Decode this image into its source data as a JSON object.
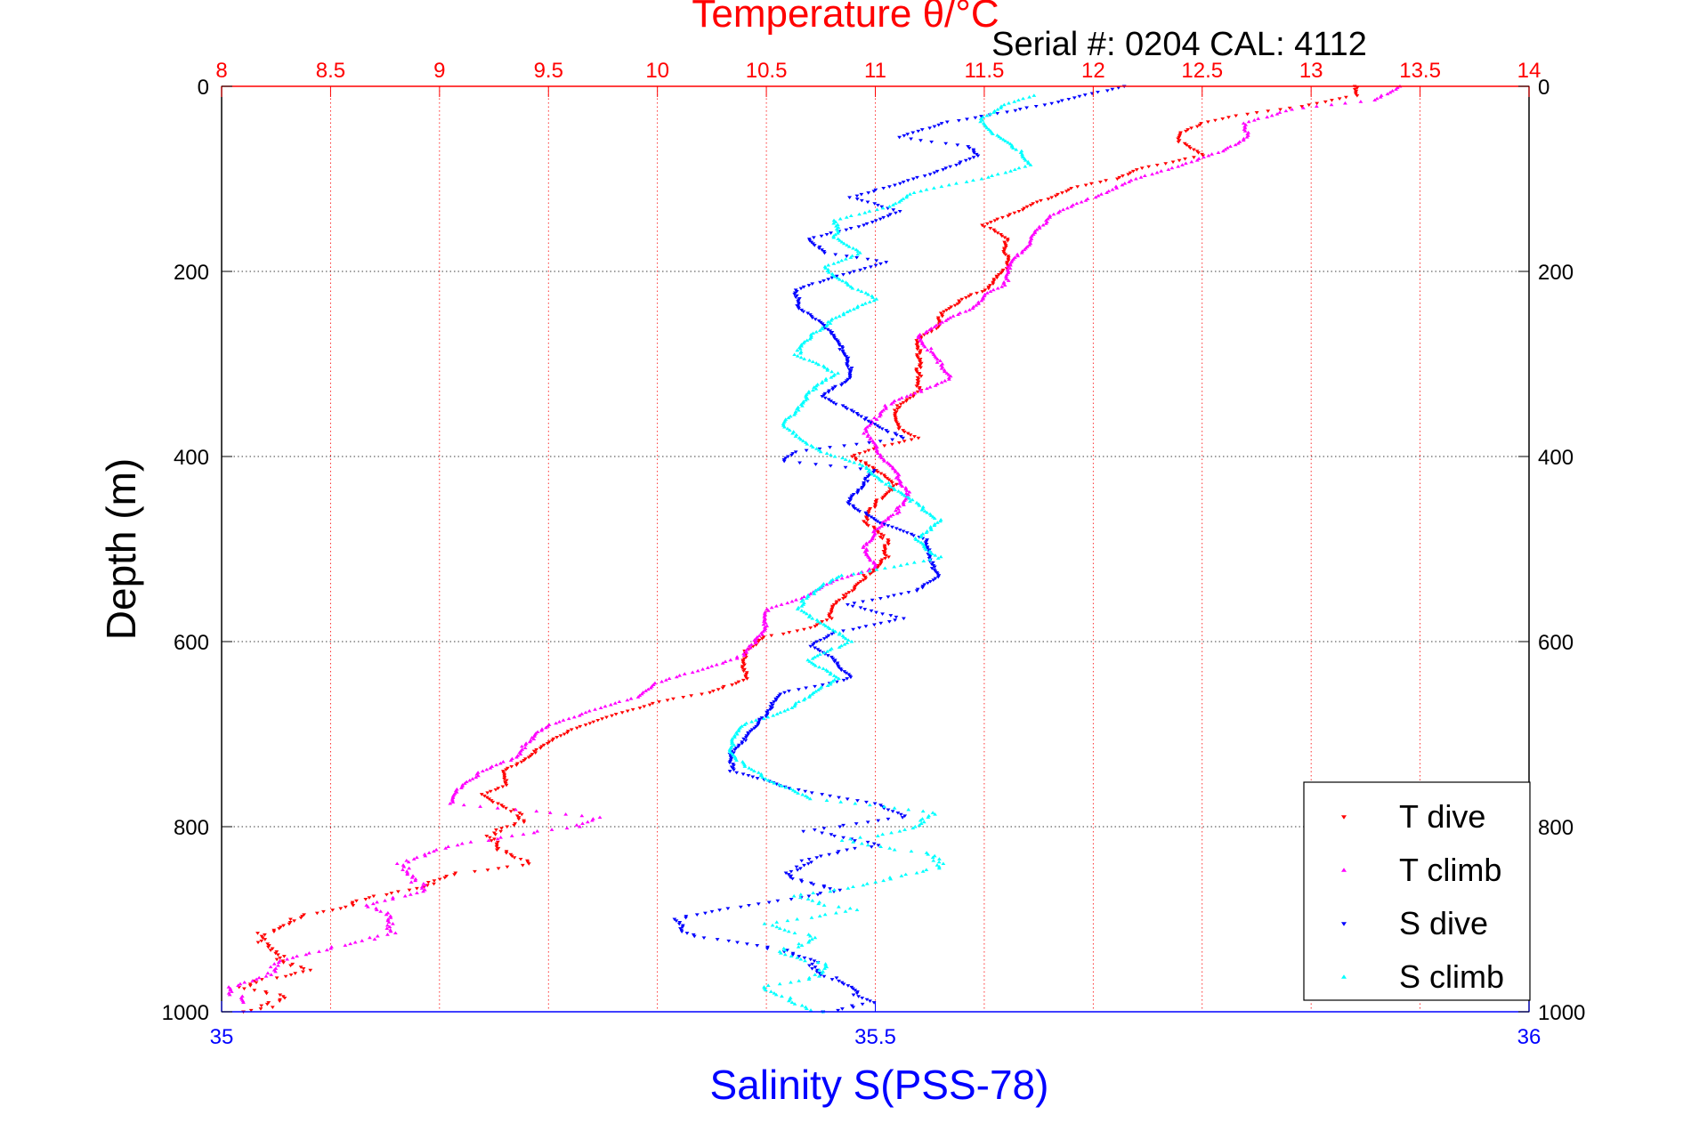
{
  "chart_data": {
    "type": "scatter",
    "title": "Temperature θ/°C",
    "subtitle": "Serial #: 0204  CAL: 4112",
    "top_axis": {
      "label": "Temperature θ/°C",
      "range": [
        8,
        14
      ],
      "ticks": [
        8,
        8.5,
        9,
        9.5,
        10,
        10.5,
        11,
        11.5,
        12,
        12.5,
        13,
        13.5,
        14
      ],
      "tick_labels": [
        "8",
        "8.5",
        "9",
        "9.5",
        "10",
        "10.5",
        "11",
        "11.5",
        "12",
        "12.5",
        "13",
        "13.5",
        "14"
      ],
      "color": "#ff0000"
    },
    "bottom_axis": {
      "label": "Salinity S(PSS-78)",
      "range": [
        35,
        36
      ],
      "ticks": [
        35,
        35.5,
        36
      ],
      "tick_labels": [
        "35",
        "35.5",
        "36"
      ],
      "color": "#0000ff"
    },
    "y_axis": {
      "label": "Depth (m)",
      "range": [
        1000,
        0
      ],
      "ticks": [
        0,
        200,
        400,
        600,
        800,
        1000
      ],
      "tick_labels": [
        "0",
        "200",
        "400",
        "600",
        "800",
        "1000"
      ]
    },
    "grid": true,
    "legend_position": "bottom-right",
    "series": [
      {
        "name": "T dive",
        "axis": "temperature",
        "marker": "triangle-down",
        "color": "#ff0000",
        "points": [
          [
            13.2,
            0
          ],
          [
            13.2,
            10
          ],
          [
            13.0,
            20
          ],
          [
            12.7,
            30
          ],
          [
            12.5,
            40
          ],
          [
            12.4,
            50
          ],
          [
            12.4,
            60
          ],
          [
            12.5,
            75
          ],
          [
            12.2,
            90
          ],
          [
            12.1,
            100
          ],
          [
            11.9,
            110
          ],
          [
            11.8,
            120
          ],
          [
            11.7,
            130
          ],
          [
            11.6,
            140
          ],
          [
            11.5,
            150
          ],
          [
            11.6,
            165
          ],
          [
            11.6,
            180
          ],
          [
            11.6,
            195
          ],
          [
            11.55,
            210
          ],
          [
            11.5,
            220
          ],
          [
            11.4,
            230
          ],
          [
            11.3,
            245
          ],
          [
            11.3,
            260
          ],
          [
            11.2,
            270
          ],
          [
            11.2,
            290
          ],
          [
            11.2,
            310
          ],
          [
            11.2,
            330
          ],
          [
            11.1,
            345
          ],
          [
            11.1,
            360
          ],
          [
            11.1,
            370
          ],
          [
            11.2,
            380
          ],
          [
            11.0,
            390
          ],
          [
            10.9,
            400
          ],
          [
            11.0,
            415
          ],
          [
            11.1,
            430
          ],
          [
            11.0,
            450
          ],
          [
            10.95,
            470
          ],
          [
            11.05,
            490
          ],
          [
            11.05,
            510
          ],
          [
            10.95,
            530
          ],
          [
            10.9,
            545
          ],
          [
            10.8,
            560
          ],
          [
            10.8,
            575
          ],
          [
            10.7,
            585
          ],
          [
            10.5,
            595
          ],
          [
            10.4,
            610
          ],
          [
            10.4,
            625
          ],
          [
            10.4,
            640
          ],
          [
            10.25,
            655
          ],
          [
            10.0,
            665
          ],
          [
            9.8,
            680
          ],
          [
            9.6,
            695
          ],
          [
            9.5,
            710
          ],
          [
            9.4,
            725
          ],
          [
            9.3,
            740
          ],
          [
            9.3,
            755
          ],
          [
            9.2,
            765
          ],
          [
            9.3,
            780
          ],
          [
            9.4,
            795
          ],
          [
            9.2,
            810
          ],
          [
            9.3,
            825
          ],
          [
            9.4,
            840
          ],
          [
            9.1,
            850
          ],
          [
            8.9,
            865
          ],
          [
            8.7,
            875
          ],
          [
            8.6,
            885
          ],
          [
            8.4,
            895
          ],
          [
            8.3,
            905
          ],
          [
            8.2,
            915
          ],
          [
            8.2,
            930
          ],
          [
            8.3,
            945
          ],
          [
            8.4,
            955
          ],
          [
            8.2,
            965
          ],
          [
            8.1,
            975
          ],
          [
            8.3,
            985
          ],
          [
            8.2,
            995
          ],
          [
            8.1,
            1000
          ]
        ]
      },
      {
        "name": "T climb",
        "axis": "temperature",
        "marker": "triangle-up",
        "color": "#ff00ff",
        "points": [
          [
            13.4,
            0
          ],
          [
            13.3,
            15
          ],
          [
            12.9,
            25
          ],
          [
            12.7,
            40
          ],
          [
            12.7,
            55
          ],
          [
            12.6,
            70
          ],
          [
            12.4,
            85
          ],
          [
            12.2,
            100
          ],
          [
            12.1,
            110
          ],
          [
            11.95,
            125
          ],
          [
            11.8,
            140
          ],
          [
            11.75,
            155
          ],
          [
            11.7,
            170
          ],
          [
            11.65,
            185
          ],
          [
            11.6,
            200
          ],
          [
            11.6,
            215
          ],
          [
            11.5,
            225
          ],
          [
            11.45,
            240
          ],
          [
            11.3,
            255
          ],
          [
            11.2,
            270
          ],
          [
            11.25,
            285
          ],
          [
            11.3,
            300
          ],
          [
            11.35,
            315
          ],
          [
            11.2,
            330
          ],
          [
            11.05,
            345
          ],
          [
            11.0,
            360
          ],
          [
            10.95,
            375
          ],
          [
            11.0,
            390
          ],
          [
            11.05,
            405
          ],
          [
            11.1,
            420
          ],
          [
            11.15,
            440
          ],
          [
            11.1,
            460
          ],
          [
            11.0,
            480
          ],
          [
            10.95,
            500
          ],
          [
            11.0,
            520
          ],
          [
            10.8,
            535
          ],
          [
            10.7,
            550
          ],
          [
            10.5,
            565
          ],
          [
            10.5,
            580
          ],
          [
            10.45,
            600
          ],
          [
            10.4,
            615
          ],
          [
            10.2,
            630
          ],
          [
            10.0,
            645
          ],
          [
            9.9,
            660
          ],
          [
            9.7,
            675
          ],
          [
            9.5,
            690
          ],
          [
            9.4,
            710
          ],
          [
            9.35,
            725
          ],
          [
            9.2,
            740
          ],
          [
            9.1,
            755
          ],
          [
            9.05,
            775
          ],
          [
            9.7,
            790
          ],
          [
            9.65,
            800
          ],
          [
            9.3,
            810
          ],
          [
            9.0,
            825
          ],
          [
            8.8,
            840
          ],
          [
            8.9,
            855
          ],
          [
            8.9,
            870
          ],
          [
            8.7,
            885
          ],
          [
            8.75,
            900
          ],
          [
            8.8,
            915
          ],
          [
            8.5,
            930
          ],
          [
            8.3,
            945
          ],
          [
            8.2,
            960
          ],
          [
            8.05,
            975
          ],
          [
            8.1,
            990
          ]
        ]
      },
      {
        "name": "S dive",
        "axis": "salinity",
        "marker": "triangle-down",
        "color": "#0000ff",
        "points": [
          [
            35.69,
            0
          ],
          [
            35.63,
            20
          ],
          [
            35.55,
            40
          ],
          [
            35.52,
            55
          ],
          [
            35.57,
            65
          ],
          [
            35.58,
            75
          ],
          [
            35.55,
            90
          ],
          [
            35.52,
            105
          ],
          [
            35.48,
            120
          ],
          [
            35.52,
            135
          ],
          [
            35.49,
            150
          ],
          [
            35.45,
            165
          ],
          [
            35.46,
            180
          ],
          [
            35.51,
            190
          ],
          [
            35.47,
            205
          ],
          [
            35.44,
            220
          ],
          [
            35.44,
            240
          ],
          [
            35.46,
            255
          ],
          [
            35.47,
            275
          ],
          [
            35.48,
            295
          ],
          [
            35.48,
            315
          ],
          [
            35.46,
            335
          ],
          [
            35.48,
            350
          ],
          [
            35.5,
            365
          ],
          [
            35.52,
            380
          ],
          [
            35.44,
            395
          ],
          [
            35.43,
            405
          ],
          [
            35.5,
            415
          ],
          [
            35.49,
            430
          ],
          [
            35.48,
            450
          ],
          [
            35.5,
            470
          ],
          [
            35.54,
            490
          ],
          [
            35.54,
            510
          ],
          [
            35.55,
            530
          ],
          [
            35.53,
            545
          ],
          [
            35.48,
            560
          ],
          [
            35.52,
            575
          ],
          [
            35.47,
            590
          ],
          [
            35.45,
            605
          ],
          [
            35.47,
            620
          ],
          [
            35.48,
            640
          ],
          [
            35.43,
            655
          ],
          [
            35.42,
            670
          ],
          [
            35.41,
            690
          ],
          [
            35.4,
            705
          ],
          [
            35.39,
            720
          ],
          [
            35.39,
            740
          ],
          [
            35.44,
            760
          ],
          [
            35.5,
            775
          ],
          [
            35.52,
            790
          ],
          [
            35.45,
            805
          ],
          [
            35.5,
            820
          ],
          [
            35.45,
            835
          ],
          [
            35.43,
            850
          ],
          [
            35.47,
            870
          ],
          [
            35.4,
            885
          ],
          [
            35.35,
            900
          ],
          [
            35.35,
            915
          ],
          [
            35.42,
            930
          ],
          [
            35.45,
            945
          ],
          [
            35.46,
            960
          ],
          [
            35.48,
            975
          ],
          [
            35.5,
            990
          ],
          [
            35.46,
            1000
          ]
        ]
      },
      {
        "name": "S climb",
        "axis": "salinity",
        "marker": "triangle-up",
        "color": "#00ffff",
        "points": [
          [
            35.62,
            10
          ],
          [
            35.6,
            20
          ],
          [
            35.58,
            35
          ],
          [
            35.59,
            50
          ],
          [
            35.61,
            70
          ],
          [
            35.62,
            85
          ],
          [
            35.58,
            100
          ],
          [
            35.53,
            115
          ],
          [
            35.51,
            130
          ],
          [
            35.47,
            145
          ],
          [
            35.47,
            165
          ],
          [
            35.49,
            180
          ],
          [
            35.46,
            195
          ],
          [
            35.48,
            215
          ],
          [
            35.5,
            230
          ],
          [
            35.47,
            250
          ],
          [
            35.45,
            270
          ],
          [
            35.44,
            290
          ],
          [
            35.47,
            310
          ],
          [
            35.45,
            330
          ],
          [
            35.44,
            350
          ],
          [
            35.43,
            365
          ],
          [
            35.44,
            380
          ],
          [
            35.46,
            395
          ],
          [
            35.49,
            410
          ],
          [
            35.51,
            430
          ],
          [
            35.53,
            450
          ],
          [
            35.55,
            470
          ],
          [
            35.53,
            490
          ],
          [
            35.55,
            510
          ],
          [
            35.47,
            530
          ],
          [
            35.45,
            550
          ],
          [
            35.44,
            565
          ],
          [
            35.46,
            580
          ],
          [
            35.48,
            600
          ],
          [
            35.45,
            620
          ],
          [
            35.47,
            640
          ],
          [
            35.45,
            660
          ],
          [
            35.43,
            675
          ],
          [
            35.4,
            690
          ],
          [
            35.39,
            705
          ],
          [
            35.39,
            720
          ],
          [
            35.4,
            735
          ],
          [
            35.42,
            750
          ],
          [
            35.45,
            770
          ],
          [
            35.55,
            785
          ],
          [
            35.53,
            800
          ],
          [
            35.48,
            815
          ],
          [
            35.54,
            830
          ],
          [
            35.55,
            845
          ],
          [
            35.5,
            860
          ],
          [
            35.44,
            875
          ],
          [
            35.48,
            890
          ],
          [
            35.42,
            905
          ],
          [
            35.45,
            920
          ],
          [
            35.43,
            935
          ],
          [
            35.46,
            950
          ],
          [
            35.45,
            965
          ],
          [
            35.41,
            975
          ],
          [
            35.44,
            990
          ],
          [
            35.46,
            1000
          ]
        ]
      }
    ]
  }
}
